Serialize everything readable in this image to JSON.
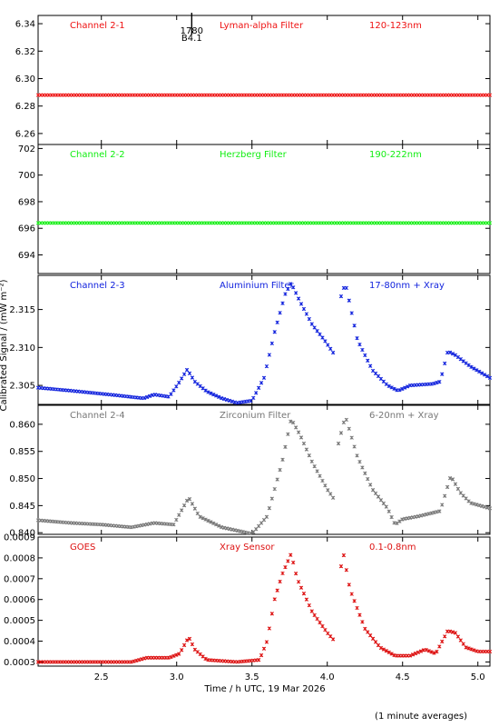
{
  "chart_data": {
    "type": "scatter",
    "xlabel": "Time / h UTC, 19 Mar 2026",
    "ylabel": "Calibrated Signal / (mW m⁻²)",
    "footnote": "(1 minute averages)",
    "xlim": [
      2.08,
      5.08
    ],
    "xticks": [
      2.5,
      3.0,
      3.5,
      4.0,
      4.5,
      5.0
    ],
    "xtick_labels": [
      "2.5",
      "3.0",
      "3.5",
      "4.0",
      "4.5",
      "5.0"
    ],
    "marker_annotation": {
      "x": 3.1,
      "label_top": "1780",
      "label_bottom": "B4.1"
    },
    "panels": [
      {
        "id": "ch21",
        "color": "#ee1111",
        "channel": "Channel 2-1",
        "filter": "Lyman-alpha Filter",
        "band": "120-123nm",
        "ylim": [
          6.252,
          6.346
        ],
        "yticks": [
          6.26,
          6.28,
          6.3,
          6.32,
          6.34
        ],
        "ytick_labels": [
          "6.26",
          "6.28",
          "6.30",
          "6.32",
          "6.34"
        ],
        "keypoints": [
          [
            2.08,
            6.288
          ],
          [
            5.08,
            6.288
          ]
        ],
        "gaps": []
      },
      {
        "id": "ch22",
        "color": "#11ee11",
        "channel": "Channel 2-2",
        "filter": "Herzberg Filter",
        "band": "190-222nm",
        "ylim": [
          692.6,
          702.3
        ],
        "yticks": [
          694,
          696,
          698,
          700,
          702
        ],
        "ytick_labels": [
          "694",
          "696",
          "698",
          "700",
          "702"
        ],
        "keypoints": [
          [
            2.08,
            696.4
          ],
          [
            5.08,
            696.4
          ]
        ],
        "gaps": []
      },
      {
        "id": "ch23",
        "color": "#1122dd",
        "channel": "Channel 2-3",
        "filter": "Aluminium Filter",
        "band": "17-80nm + Xray",
        "ylim": [
          2.3025,
          2.3195
        ],
        "yticks": [
          2.305,
          2.31,
          2.315
        ],
        "ytick_labels": [
          "2.305",
          "2.310",
          "2.315"
        ],
        "keypoints": [
          [
            2.08,
            2.3047
          ],
          [
            2.3,
            2.3043
          ],
          [
            2.6,
            2.3037
          ],
          [
            2.78,
            2.3033
          ],
          [
            2.85,
            2.3038
          ],
          [
            2.95,
            2.3035
          ],
          [
            3.02,
            2.3055
          ],
          [
            3.07,
            2.3071
          ],
          [
            3.12,
            2.3055
          ],
          [
            3.2,
            2.3042
          ],
          [
            3.3,
            2.3033
          ],
          [
            3.4,
            2.3027
          ],
          [
            3.5,
            2.303
          ],
          [
            3.58,
            2.306
          ],
          [
            3.65,
            2.312
          ],
          [
            3.72,
            2.317
          ],
          [
            3.76,
            2.3185
          ],
          [
            3.82,
            2.316
          ],
          [
            3.9,
            2.313
          ],
          [
            3.98,
            2.311
          ],
          [
            4.05,
            2.309
          ],
          [
            4.08,
            2.316
          ],
          [
            4.12,
            2.3185
          ],
          [
            4.2,
            2.311
          ],
          [
            4.3,
            2.307
          ],
          [
            4.4,
            2.305
          ],
          [
            4.47,
            2.3043
          ],
          [
            4.55,
            2.305
          ],
          [
            4.7,
            2.3052
          ],
          [
            4.75,
            2.3055
          ],
          [
            4.8,
            2.3095
          ],
          [
            4.85,
            2.309
          ],
          [
            4.95,
            2.3075
          ],
          [
            5.08,
            2.306
          ]
        ],
        "gaps": [
          [
            4.05,
            4.08
          ]
        ]
      },
      {
        "id": "ch24",
        "color": "#777777",
        "channel": "Channel 2-4",
        "filter": "Zirconium Filter",
        "band": "6-20nm + Xray",
        "ylim": [
          0.8397,
          0.8635
        ],
        "yticks": [
          0.84,
          0.845,
          0.85,
          0.855,
          0.86
        ],
        "ytick_labels": [
          "0.840",
          "0.845",
          "0.850",
          "0.855",
          "0.860"
        ],
        "keypoints": [
          [
            2.08,
            0.8423
          ],
          [
            2.3,
            0.8418
          ],
          [
            2.5,
            0.8415
          ],
          [
            2.7,
            0.841
          ],
          [
            2.85,
            0.8418
          ],
          [
            2.98,
            0.8415
          ],
          [
            3.05,
            0.845
          ],
          [
            3.08,
            0.8465
          ],
          [
            3.15,
            0.843
          ],
          [
            3.3,
            0.841
          ],
          [
            3.5,
            0.8398
          ],
          [
            3.6,
            0.843
          ],
          [
            3.7,
            0.853
          ],
          [
            3.76,
            0.861
          ],
          [
            3.82,
            0.858
          ],
          [
            3.9,
            0.853
          ],
          [
            4.0,
            0.848
          ],
          [
            4.05,
            0.846
          ],
          [
            4.07,
            0.856
          ],
          [
            4.12,
            0.8615
          ],
          [
            4.2,
            0.854
          ],
          [
            4.3,
            0.848
          ],
          [
            4.4,
            0.8445
          ],
          [
            4.45,
            0.8415
          ],
          [
            4.5,
            0.8425
          ],
          [
            4.6,
            0.843
          ],
          [
            4.75,
            0.844
          ],
          [
            4.82,
            0.8505
          ],
          [
            4.88,
            0.8475
          ],
          [
            4.95,
            0.8455
          ],
          [
            5.08,
            0.8445
          ]
        ],
        "gaps": [
          [
            4.05,
            4.07
          ]
        ]
      },
      {
        "id": "goes",
        "color": "#dd1111",
        "channel": "GOES",
        "filter": "Xray Sensor",
        "band": "0.1-0.8nm",
        "ylim": [
          0.00028,
          0.0009
        ],
        "yticks": [
          0.0003,
          0.0004,
          0.0005,
          0.0006,
          0.0007,
          0.0008,
          0.0009
        ],
        "ytick_labels": [
          "0.0003",
          "0.0004",
          "0.0005",
          "0.0006",
          "0.0007",
          "0.0008",
          "0.0009"
        ],
        "keypoints": [
          [
            2.08,
            0.0003
          ],
          [
            2.5,
            0.0003
          ],
          [
            2.7,
            0.0003
          ],
          [
            2.8,
            0.00032
          ],
          [
            2.95,
            0.00032
          ],
          [
            3.02,
            0.00034
          ],
          [
            3.08,
            0.00042
          ],
          [
            3.12,
            0.00036
          ],
          [
            3.2,
            0.00031
          ],
          [
            3.4,
            0.0003
          ],
          [
            3.55,
            0.00031
          ],
          [
            3.6,
            0.0004
          ],
          [
            3.65,
            0.0006
          ],
          [
            3.7,
            0.00072
          ],
          [
            3.76,
            0.00082
          ],
          [
            3.8,
            0.0007
          ],
          [
            3.9,
            0.00054
          ],
          [
            4.0,
            0.00044
          ],
          [
            4.05,
            0.0004
          ],
          [
            4.08,
            0.00063
          ],
          [
            4.1,
            0.00085
          ],
          [
            4.15,
            0.00065
          ],
          [
            4.25,
            0.00046
          ],
          [
            4.35,
            0.00037
          ],
          [
            4.45,
            0.00033
          ],
          [
            4.55,
            0.00033
          ],
          [
            4.65,
            0.00036
          ],
          [
            4.72,
            0.00034
          ],
          [
            4.8,
            0.00045
          ],
          [
            4.85,
            0.00044
          ],
          [
            4.92,
            0.00037
          ],
          [
            5.0,
            0.00035
          ],
          [
            5.08,
            0.00035
          ]
        ],
        "gaps": [
          [
            4.05,
            4.08
          ]
        ]
      }
    ]
  }
}
